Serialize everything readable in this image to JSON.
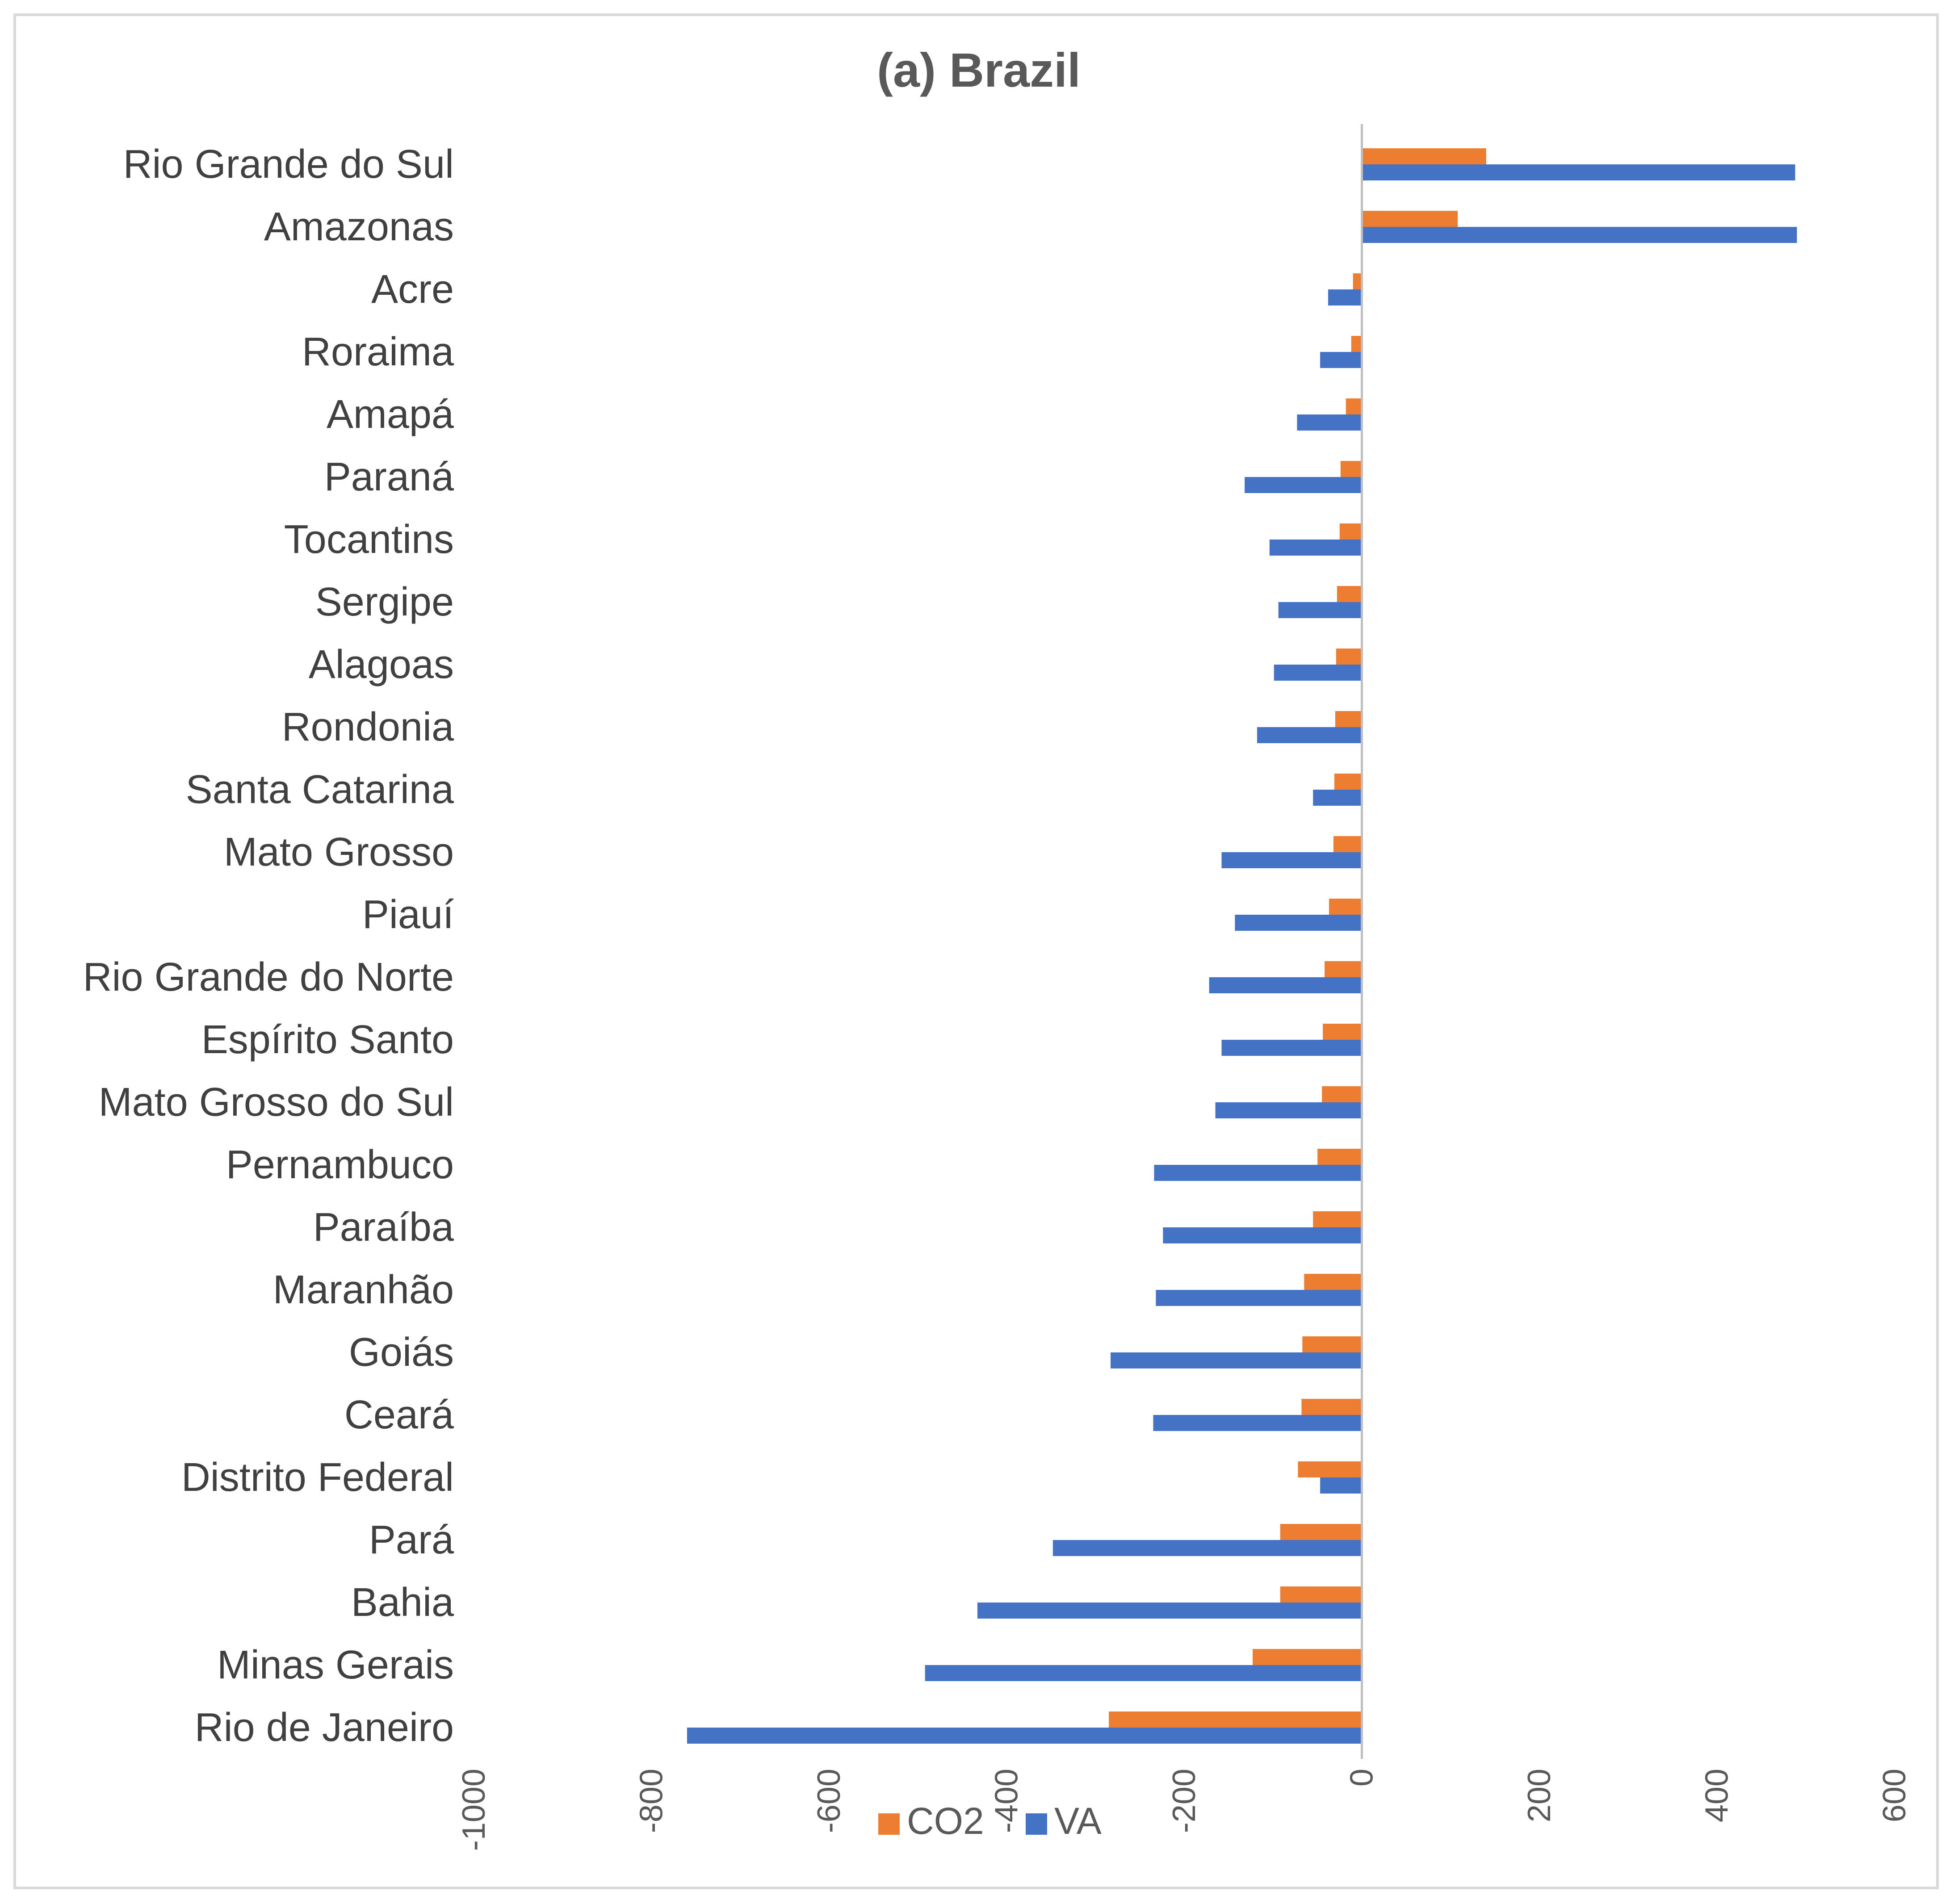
{
  "chart_data": {
    "type": "bar",
    "orientation": "horizontal",
    "title": "(a) Brazil",
    "xlabel": "",
    "ylabel": "",
    "xlim": [
      -1000,
      600
    ],
    "ticks": [
      -1000,
      -800,
      -600,
      -400,
      -200,
      0,
      200,
      400,
      600
    ],
    "tick_labels": [
      "-1000",
      "-800",
      "-600",
      "-400",
      "-200",
      "0",
      "200",
      "400",
      "600"
    ],
    "grid": false,
    "legend_position": "bottom",
    "categories": [
      "Rio Grande do Sul",
      "Amazonas",
      "Acre",
      "Roraima",
      "Amapá",
      "Paraná",
      "Tocantins",
      "Sergipe",
      "Alagoas",
      "Rondonia",
      "Santa Catarina",
      "Mato Grosso",
      "Piauí",
      "Rio Grande do Norte",
      "Espírito Santo",
      "Mato Grosso do Sul",
      "Pernambuco",
      "Paraíba",
      "Maranhão",
      "Goiás",
      "Ceará",
      "Distrito Federal",
      "Pará",
      "Bahia",
      "Minas Gerais",
      "Rio de Janeiro"
    ],
    "series": [
      {
        "name": "CO2",
        "color": "#ed7d31",
        "values": [
          140,
          108,
          -10,
          -12,
          -18,
          -24,
          -25,
          -28,
          -29,
          -30,
          -31,
          -32,
          -37,
          -42,
          -44,
          -45,
          -50,
          -55,
          -65,
          -67,
          -68,
          -72,
          -92,
          -92,
          -123,
          -285
        ]
      },
      {
        "name": "VA",
        "color": "#4472c4",
        "values": [
          488,
          490,
          -38,
          -47,
          -73,
          -132,
          -104,
          -94,
          -99,
          -118,
          -55,
          -158,
          -143,
          -172,
          -158,
          -165,
          -234,
          -224,
          -232,
          -283,
          -235,
          -47,
          -348,
          -433,
          -492,
          -760
        ]
      }
    ]
  }
}
